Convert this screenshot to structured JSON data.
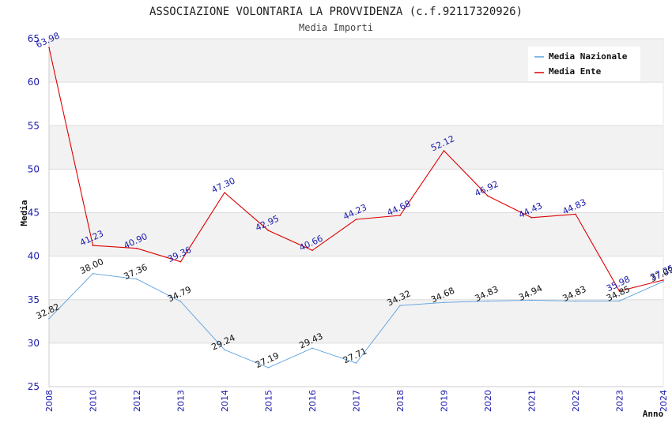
{
  "chart_data": {
    "type": "line",
    "title": "ASSOCIAZIONE VOLONTARIA LA PROVVIDENZA (c.f.92117320926)",
    "subtitle": "Media Importi",
    "xlabel": "Anno",
    "ylabel": "Media",
    "ylim": [
      25,
      65
    ],
    "yticks": [
      "25",
      "30",
      "35",
      "40",
      "45",
      "50",
      "55",
      "60",
      "65"
    ],
    "categories": [
      "2008",
      "2010",
      "2012",
      "2013",
      "2014",
      "2015",
      "2016",
      "2017",
      "2018",
      "2019",
      "2020",
      "2021",
      "2022",
      "2023",
      "2024"
    ],
    "legend_position": "top-right",
    "series": [
      {
        "name": "Media Nazionale",
        "color": "#5aa0e0",
        "values": [
          32.82,
          38.0,
          37.36,
          34.79,
          29.24,
          27.19,
          29.43,
          27.71,
          34.32,
          34.68,
          34.83,
          34.94,
          34.83,
          34.85,
          37.09
        ],
        "labels": [
          "32.82",
          "38.00",
          "37.36",
          "34.79",
          "29.24",
          "27.19",
          "29.43",
          "27.71",
          "34.32",
          "34.68",
          "34.83",
          "34.94",
          "34.83",
          "34.85",
          "37.09"
        ]
      },
      {
        "name": "Media Ente",
        "color": "#dd0000",
        "values": [
          63.98,
          41.23,
          40.9,
          39.36,
          47.3,
          42.95,
          40.66,
          44.23,
          44.68,
          52.12,
          46.92,
          44.43,
          44.83,
          35.98,
          37.25
        ],
        "labels": [
          "63.98",
          "41.23",
          "40.90",
          "39.36",
          "47.30",
          "42.95",
          "40.66",
          "44.23",
          "44.68",
          "52.12",
          "46.92",
          "44.43",
          "44.83",
          "35.98",
          "37.25"
        ]
      }
    ]
  }
}
